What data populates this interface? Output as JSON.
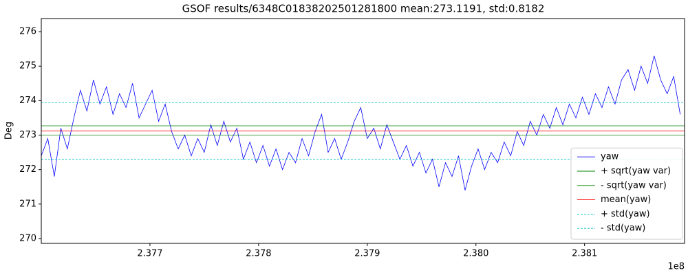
{
  "chart_data": {
    "type": "line",
    "title": "GSOF results/6348C01838202501281800 mean:273.1191, std:0.8182",
    "ylabel": "Deg",
    "x_offset_label": "1e8",
    "x": [
      237600000,
      237606000,
      237612000,
      237618000,
      237624000,
      237630000,
      237636000,
      237642000,
      237648000,
      237654000,
      237660000,
      237666000,
      237672000,
      237678000,
      237684000,
      237690000,
      237696000,
      237702000,
      237708000,
      237714000,
      237720000,
      237726000,
      237732000,
      237738000,
      237744000,
      237750000,
      237756000,
      237762000,
      237768000,
      237774000,
      237780000,
      237786000,
      237792000,
      237798000,
      237804000,
      237810000,
      237816000,
      237822000,
      237828000,
      237834000,
      237840000,
      237846000,
      237852000,
      237858000,
      237864000,
      237870000,
      237876000,
      237882000,
      237888000,
      237894000,
      237900000,
      237906000,
      237912000,
      237918000,
      237924000,
      237930000,
      237936000,
      237942000,
      237948000,
      237954000,
      237960000,
      237966000,
      237972000,
      237978000,
      237984000,
      237990000,
      237996000,
      238002000,
      238008000,
      238014000,
      238020000,
      238026000,
      238032000,
      238038000,
      238044000,
      238050000,
      238056000,
      238062000,
      238068000,
      238074000,
      238080000,
      238086000,
      238092000,
      238098000,
      238104000,
      238110000,
      238116000,
      238122000,
      238128000,
      238134000,
      238140000,
      238146000,
      238152000,
      238158000,
      238164000,
      238170000,
      238176000,
      238182000,
      238188000
    ],
    "series": [
      {
        "name": "yaw",
        "color": "#0000ff",
        "values": [
          272.4,
          272.9,
          271.8,
          273.2,
          272.6,
          273.5,
          274.3,
          273.7,
          274.6,
          273.9,
          274.4,
          273.6,
          274.2,
          273.8,
          274.5,
          273.5,
          273.9,
          274.3,
          273.4,
          273.9,
          273.1,
          272.6,
          273.0,
          272.4,
          272.9,
          272.5,
          273.3,
          272.7,
          273.4,
          272.8,
          273.2,
          272.3,
          272.8,
          272.2,
          272.7,
          272.1,
          272.6,
          272.0,
          272.5,
          272.2,
          272.9,
          272.4,
          273.1,
          273.6,
          272.5,
          272.9,
          272.3,
          272.8,
          273.4,
          273.8,
          272.9,
          273.2,
          272.6,
          273.3,
          272.8,
          272.3,
          272.7,
          272.1,
          272.5,
          271.9,
          272.3,
          271.5,
          272.2,
          271.8,
          272.4,
          271.4,
          272.1,
          272.6,
          272.0,
          272.5,
          272.2,
          272.8,
          272.4,
          273.1,
          272.7,
          273.4,
          273.0,
          273.6,
          273.2,
          273.8,
          273.3,
          273.9,
          273.5,
          274.1,
          273.6,
          274.2,
          273.8,
          274.4,
          273.9,
          274.6,
          274.9,
          274.3,
          275.0,
          274.5,
          275.3,
          274.6,
          274.2,
          274.7,
          273.6
        ]
      },
      {
        "name": "+ sqrt(yaw var)",
        "color": "#008000",
        "value": 273.27
      },
      {
        "name": "- sqrt(yaw var)",
        "color": "#008000",
        "value": 273.0
      },
      {
        "name": "mean(yaw)",
        "color": "#ff0000",
        "value": 273.1191
      },
      {
        "name": "+ std(yaw)",
        "color": "#00bfbf",
        "value": 273.9373,
        "dashed": true
      },
      {
        "name": "- std(yaw)",
        "color": "#00bfbf",
        "value": 272.3009,
        "dashed": true
      }
    ],
    "xlim": [
      237600000,
      238192000
    ],
    "xticks": [
      {
        "value": 237700000,
        "label": "2.377"
      },
      {
        "value": 237800000,
        "label": "2.378"
      },
      {
        "value": 237900000,
        "label": "2.379"
      },
      {
        "value": 238000000,
        "label": "2.380"
      },
      {
        "value": 238100000,
        "label": "2.381"
      }
    ],
    "ylim": [
      269.86,
      276.38
    ],
    "yticks": [
      270,
      271,
      272,
      273,
      274,
      275,
      276
    ],
    "legend": "lower right"
  }
}
